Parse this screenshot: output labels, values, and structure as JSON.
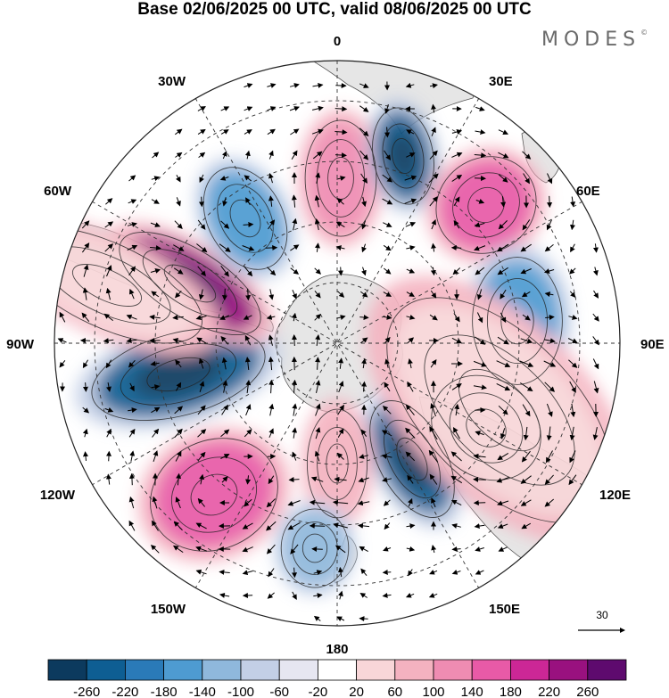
{
  "title": "Base 02/06/2025 00 UTC, valid 08/06/2025 00 UTC",
  "brand": {
    "name": "MODES",
    "mark": "©"
  },
  "longitude_labels": {
    "lon_0": "0",
    "lon_30e": "30E",
    "lon_60e": "60E",
    "lon_90e": "90E",
    "lon_120e": "120E",
    "lon_150e": "150E",
    "lon_180": "180",
    "lon_150w": "150W",
    "lon_120w": "120W",
    "lon_90w": "90W",
    "lon_60w": "60W",
    "lon_30w": "30W"
  },
  "vector_key": {
    "value": "30"
  },
  "colorbar": {
    "labels": [
      "-260",
      "-220",
      "-180",
      "-140",
      "-100",
      "-60",
      "-20",
      "20",
      "60",
      "100",
      "140",
      "180",
      "220",
      "260"
    ],
    "colors": [
      "#0c3a5e",
      "#0e5e93",
      "#2a7ab8",
      "#4e9bd1",
      "#8fb8dc",
      "#c3cfe6",
      "#e6e6f1",
      "#ffffff",
      "#f8d6d8",
      "#f4b2c0",
      "#ef8cb2",
      "#e85aa7",
      "#cc2796",
      "#99117f",
      "#5e0a6e"
    ]
  },
  "map": {
    "projection": "south-polar-stereographic",
    "ocean_color": "#ffffff",
    "land_color": "#e6e6e6",
    "coast_color": "#555555"
  }
}
